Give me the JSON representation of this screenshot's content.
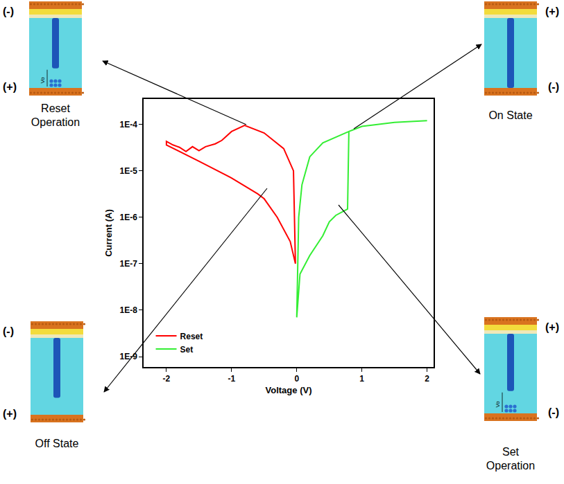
{
  "chart_data": {
    "type": "line",
    "xlabel": "Voltage (V)",
    "ylabel": "Current (A)",
    "log": "y",
    "grid": false,
    "legend": "lower left",
    "xlim": [
      -2.35,
      2.1
    ],
    "xticks": [
      -2,
      -1,
      0,
      1,
      2
    ],
    "ylim": [
      6e-10,
      0.00035
    ],
    "yticks": [
      {
        "value": 1e-09,
        "label": "1E-9"
      },
      {
        "value": 1e-08,
        "label": "1E-8"
      },
      {
        "value": 1e-07,
        "label": "1E-7"
      },
      {
        "value": 1e-06,
        "label": "1E-6"
      },
      {
        "value": 1e-05,
        "label": "1E-5"
      },
      {
        "value": 0.0001,
        "label": "1E-4"
      }
    ],
    "series": [
      {
        "name": "Reset",
        "color": "#ff0000",
        "x": [
          -0.02,
          -0.05,
          -0.2,
          -0.5,
          -0.8,
          -1.0,
          -1.15,
          -1.25,
          -1.4,
          -1.5,
          -1.6,
          -1.7,
          -1.8,
          -1.9,
          -2.0,
          -2.0,
          -1.5,
          -1.0,
          -0.6,
          -0.5,
          -0.3,
          -0.1,
          -0.02
        ],
        "values": [
          1e-07,
          1e-05,
          3e-05,
          6.5e-05,
          9.5e-05,
          7e-05,
          4.5e-05,
          3.8e-05,
          3.3e-05,
          2.7e-05,
          3.3e-05,
          2.6e-05,
          3.2e-05,
          3.6e-05,
          4.3e-05,
          3.6e-05,
          1.6e-05,
          7e-06,
          3.2e-06,
          2.5e-06,
          1e-06,
          3e-07,
          1e-07
        ]
      },
      {
        "name": "Set",
        "color": "#33ee33",
        "x": [
          0,
          0.05,
          0.2,
          0.4,
          0.5,
          0.6,
          0.78,
          0.8,
          1.0,
          1.5,
          2.0,
          1.5,
          1.0,
          0.8,
          0.4,
          0.2,
          0.08,
          0.03,
          0.0
        ],
        "values": [
          7e-09,
          6e-08,
          1.5e-07,
          4e-07,
          8e-07,
          1.1e-06,
          1.5e-06,
          7e-05,
          9e-05,
          0.00011,
          0.00012,
          0.00011,
          9e-05,
          7e-05,
          4e-05,
          2e-05,
          5e-06,
          1e-06,
          7e-09
        ]
      }
    ]
  },
  "insets": [
    {
      "label": "Reset Operation",
      "top_polarity": "(-)",
      "bottom_polarity": "(+)",
      "gap_label": "Vo"
    },
    {
      "label": "On State",
      "top_polarity": "(+)",
      "bottom_polarity": "(-)"
    },
    {
      "label": "Off State",
      "top_polarity": "(-)",
      "bottom_polarity": "(+)"
    },
    {
      "label": "Set Operation",
      "top_polarity": "(+)",
      "bottom_polarity": "(-)",
      "gap_label": "Vo"
    }
  ]
}
